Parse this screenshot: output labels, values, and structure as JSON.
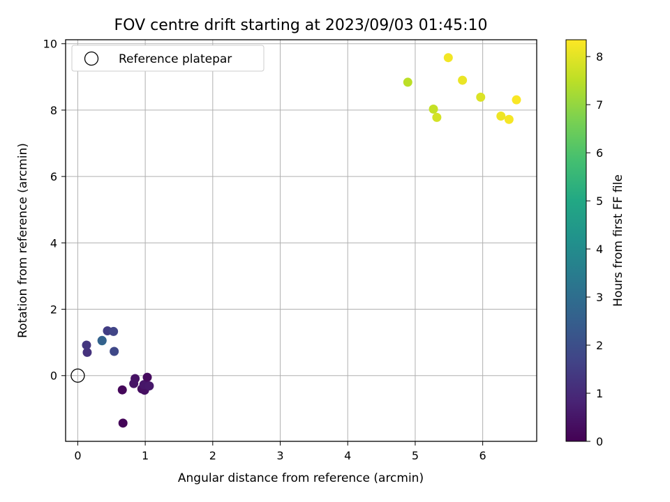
{
  "chart_data": {
    "type": "scatter",
    "title": "FOV centre drift starting at 2023/09/03 01:45:10",
    "xlabel": "Angular distance from reference (arcmin)",
    "ylabel": "Rotation from reference (arcmin)",
    "xlim": [
      -0.18,
      6.8
    ],
    "ylim": [
      -1.98,
      10.12
    ],
    "xticks": [
      0,
      1,
      2,
      3,
      4,
      5,
      6
    ],
    "yticks": [
      0,
      2,
      4,
      6,
      8,
      10
    ],
    "grid": true,
    "legend": {
      "placement": "upper-left",
      "entries": [
        {
          "label": "Reference platepar",
          "marker": "open-circle"
        }
      ]
    },
    "reference_point": {
      "x": 0,
      "y": 0
    },
    "colorbar": {
      "label": "Hours from first FF file",
      "colormap": "viridis",
      "range": [
        0,
        8.35
      ],
      "ticks": [
        0,
        1,
        2,
        3,
        4,
        5,
        6,
        7,
        8
      ]
    },
    "points": [
      {
        "x": 0.67,
        "y": -1.43,
        "t": 0.1
      },
      {
        "x": 0.66,
        "y": -0.43,
        "t": 0.15
      },
      {
        "x": 0.85,
        "y": -0.09,
        "t": 0.4
      },
      {
        "x": 0.83,
        "y": -0.24,
        "t": 0.45
      },
      {
        "x": 0.95,
        "y": -0.4,
        "t": 0.3
      },
      {
        "x": 0.99,
        "y": -0.44,
        "t": 0.35
      },
      {
        "x": 0.98,
        "y": -0.27,
        "t": 0.5
      },
      {
        "x": 1.03,
        "y": -0.05,
        "t": 0.25
      },
      {
        "x": 1.06,
        "y": -0.31,
        "t": 0.55
      },
      {
        "x": 0.14,
        "y": 0.7,
        "t": 1.2
      },
      {
        "x": 0.13,
        "y": 0.92,
        "t": 1.3
      },
      {
        "x": 0.44,
        "y": 1.35,
        "t": 1.5
      },
      {
        "x": 0.53,
        "y": 1.33,
        "t": 1.7
      },
      {
        "x": 0.54,
        "y": 0.73,
        "t": 1.8
      },
      {
        "x": 0.36,
        "y": 1.05,
        "t": 3.4
      },
      {
        "x": 0.36,
        "y": 1.06,
        "t": 2.6
      },
      {
        "x": 4.89,
        "y": 8.84,
        "t": 7.5
      },
      {
        "x": 5.27,
        "y": 8.03,
        "t": 7.6
      },
      {
        "x": 5.32,
        "y": 7.78,
        "t": 7.8
      },
      {
        "x": 5.49,
        "y": 9.58,
        "t": 8.2
      },
      {
        "x": 5.7,
        "y": 8.9,
        "t": 8.1
      },
      {
        "x": 5.97,
        "y": 8.39,
        "t": 7.9
      },
      {
        "x": 6.27,
        "y": 7.82,
        "t": 8.15
      },
      {
        "x": 6.39,
        "y": 7.72,
        "t": 8.25
      },
      {
        "x": 6.5,
        "y": 8.31,
        "t": 8.3
      }
    ]
  }
}
